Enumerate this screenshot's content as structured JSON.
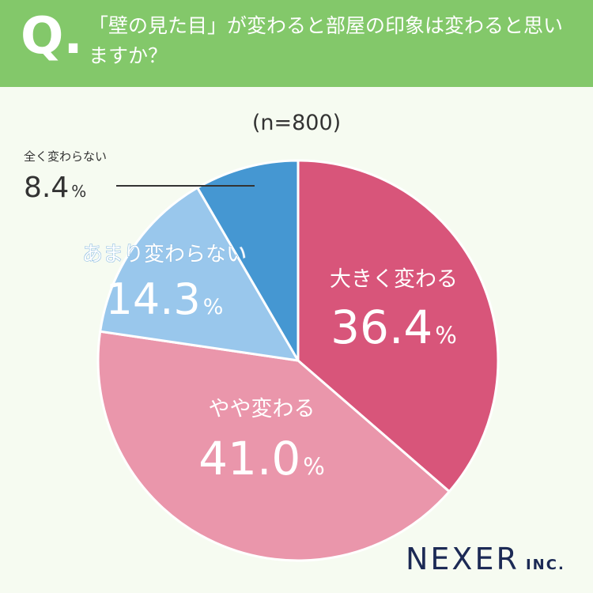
{
  "header": {
    "q_mark": "Q.",
    "question": "「壁の見た目」が変わると部屋の印象は変わると思いますか？"
  },
  "sample": "(n=800)",
  "chart_data": {
    "type": "pie",
    "title": "「壁の見た目」が変わると部屋の印象は変わると思いますか？",
    "n": 800,
    "start": "12 o'clock",
    "direction": "clockwise",
    "slices": [
      {
        "label": "大きく変わる",
        "value": 36.4,
        "value_text": "36.4",
        "unit": "%",
        "color": "#d8557a",
        "text_color": "#ffffff"
      },
      {
        "label": "やや変わる",
        "value": 41.0,
        "value_text": "41.0",
        "unit": "%",
        "color": "#ea96ab",
        "text_color": "#ffffff"
      },
      {
        "label": "あまり変わらない",
        "value": 14.3,
        "value_text": "14.3",
        "unit": "%",
        "color": "#99c7ec",
        "text_color": "#ffffff"
      },
      {
        "label": "全く変わらない",
        "value": 8.4,
        "value_text": "8.4",
        "unit": "%",
        "color": "#4597d2",
        "text_color": "#333333"
      }
    ]
  },
  "brand": {
    "main": "NEXER",
    "suffix": "INC."
  }
}
